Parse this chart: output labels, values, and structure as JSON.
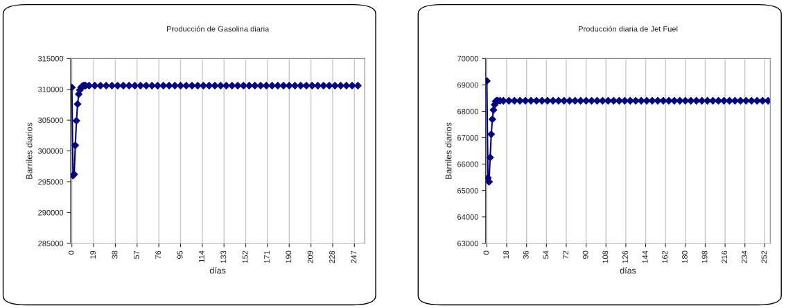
{
  "chart_data": [
    {
      "type": "line",
      "title": "Producción de Gasolina diaria",
      "xlabel": "días",
      "ylabel": "Barriles diarios",
      "series": [
        {
          "color": "#000080",
          "x": [
            0,
            1,
            2,
            3,
            4,
            5,
            6,
            7,
            8,
            9,
            10,
            11,
            12,
            15,
            20,
            25,
            30,
            35,
            40,
            45,
            50,
            55,
            60,
            65,
            70,
            75,
            80,
            85,
            90,
            95,
            100,
            105,
            110,
            115,
            120,
            125,
            130,
            135,
            140,
            145,
            150,
            155,
            160,
            165,
            170,
            175,
            180,
            185,
            190,
            195,
            200,
            205,
            210,
            215,
            220,
            225,
            230,
            235,
            240,
            245,
            250
          ],
          "values": [
            310300,
            296000,
            296200,
            300900,
            304900,
            307600,
            309200,
            309900,
            310300,
            310500,
            310600,
            310600,
            310600,
            310600,
            310600,
            310600,
            310600,
            310600,
            310600,
            310600,
            310600,
            310600,
            310600,
            310600,
            310600,
            310600,
            310600,
            310600,
            310600,
            310600,
            310600,
            310600,
            310600,
            310600,
            310600,
            310600,
            310600,
            310600,
            310600,
            310600,
            310600,
            310600,
            310600,
            310600,
            310600,
            310600,
            310600,
            310600,
            310600,
            310600,
            310600,
            310600,
            310600,
            310600,
            310600,
            310600,
            310600,
            310600,
            310600,
            310600,
            310600
          ]
        }
      ],
      "xlim": [
        -1,
        256
      ],
      "xticks": [
        0,
        19,
        38,
        57,
        76,
        95,
        114,
        133,
        152,
        171,
        190,
        209,
        228,
        247
      ],
      "ylim": [
        285000,
        315000
      ],
      "yticks": [
        285000,
        290000,
        295000,
        300000,
        305000,
        310000,
        315000
      ],
      "grid": "x",
      "marker": "diamond",
      "line_style": "solid"
    },
    {
      "type": "line",
      "title": "Producción diaria de Jet Fuel",
      "xlabel": "días",
      "ylabel": "Barriles diarios",
      "series": [
        {
          "color": "#000080",
          "x": [
            0,
            1,
            2,
            3,
            4,
            5,
            6,
            7,
            8,
            9,
            10,
            12,
            15,
            20,
            25,
            30,
            35,
            40,
            45,
            50,
            55,
            60,
            65,
            70,
            75,
            80,
            85,
            90,
            95,
            100,
            105,
            110,
            115,
            120,
            125,
            130,
            135,
            140,
            145,
            150,
            155,
            160,
            165,
            170,
            175,
            180,
            185,
            190,
            195,
            200,
            205,
            210,
            215,
            220,
            225,
            230,
            235,
            240,
            245,
            250,
            255
          ],
          "values": [
            69150,
            65480,
            65330,
            66250,
            67130,
            67700,
            68050,
            68250,
            68380,
            68400,
            68400,
            68400,
            68400,
            68400,
            68400,
            68400,
            68400,
            68400,
            68400,
            68400,
            68400,
            68400,
            68400,
            68400,
            68400,
            68400,
            68400,
            68400,
            68400,
            68400,
            68400,
            68400,
            68400,
            68400,
            68400,
            68400,
            68400,
            68400,
            68400,
            68400,
            68400,
            68400,
            68400,
            68400,
            68400,
            68400,
            68400,
            68400,
            68400,
            68400,
            68400,
            68400,
            68400,
            68400,
            68400,
            68400,
            68400,
            68400,
            68400,
            68400,
            68400
          ]
        }
      ],
      "xlim": [
        -1,
        257
      ],
      "xticks": [
        0,
        18,
        36,
        54,
        72,
        90,
        108,
        126,
        144,
        162,
        180,
        198,
        216,
        234,
        252
      ],
      "ylim": [
        63000,
        70000
      ],
      "yticks": [
        63000,
        64000,
        65000,
        66000,
        67000,
        68000,
        69000,
        70000
      ],
      "grid": "x",
      "marker": "diamond",
      "line_style": "solid"
    }
  ]
}
